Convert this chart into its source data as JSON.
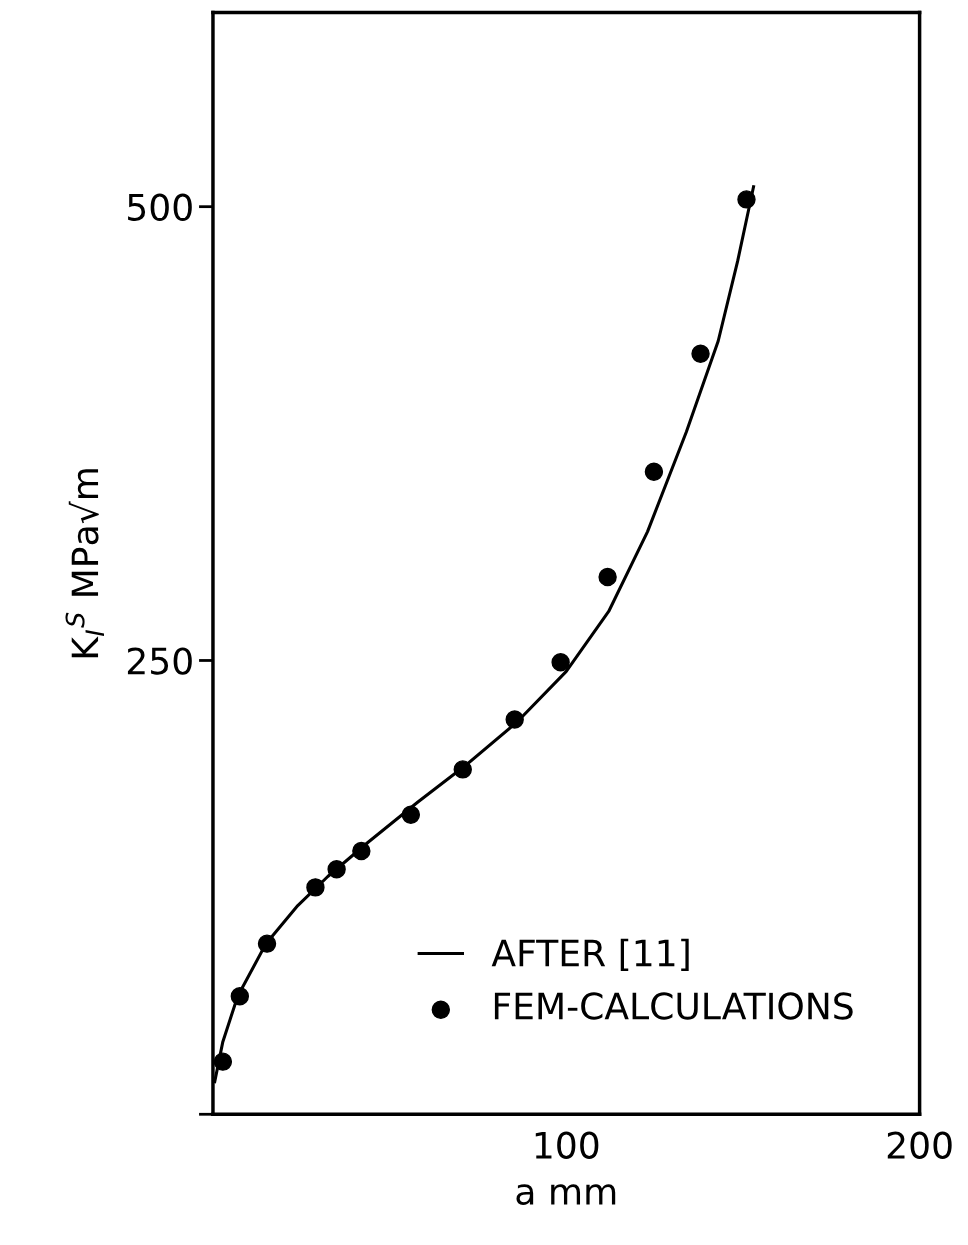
{
  "chart_data": {
    "type": "line",
    "xlabel": "a mm",
    "ylabel": "K$_{I}$$^{S}$ MPa√m",
    "xlim": [
      0,
      200
    ],
    "ylim": [
      0,
      607
    ],
    "xticks": [
      100,
      200
    ],
    "yticks": [
      {
        "value": 0,
        "label": null
      },
      250,
      500
    ],
    "grid": false,
    "legend": "bottom",
    "series": [
      {
        "name": "AFTER [11]",
        "color": "#000000",
        "marker": "none",
        "line_style": "solid",
        "x": [
          0.5,
          2.8,
          7,
          15,
          24,
          32.5,
          44,
          58,
          72,
          86,
          100,
          112,
          123,
          134,
          143,
          148.5,
          153
        ],
        "values": [
          18,
          40,
          65,
          94,
          115,
          131,
          150,
          172,
          193,
          216,
          244,
          277,
          321,
          376,
          426,
          470,
          511
        ]
      },
      {
        "name": "FEM-CALCULATIONS",
        "type": "scatter",
        "color": "#000000",
        "marker": "circle",
        "x": [
          2.8,
          7.6,
          15.3,
          29,
          35,
          42,
          56,
          70.7,
          85.4,
          98.4,
          111.7,
          124.8,
          138,
          151
        ],
        "values": [
          29,
          65,
          94,
          125,
          135,
          145,
          165,
          190,
          217.5,
          249,
          296,
          354,
          419,
          504
        ]
      }
    ]
  }
}
